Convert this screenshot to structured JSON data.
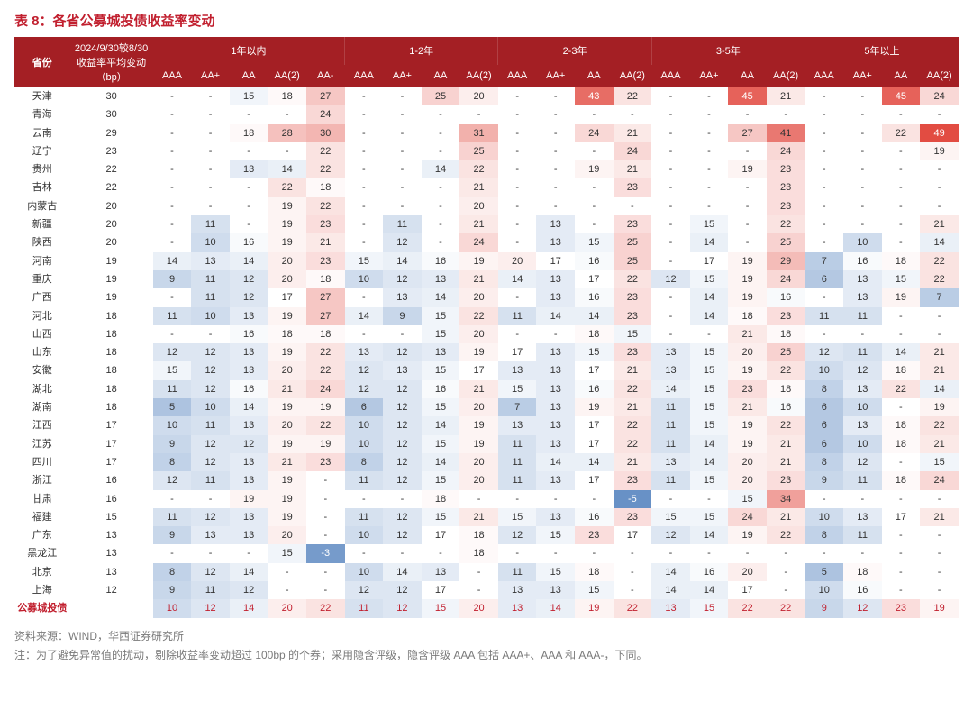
{
  "title": "表 8：各省公募城投债收益率变动",
  "header": {
    "province": "省份",
    "bp_line1": "2024/9/30较8/30",
    "bp_line2": "收益率平均变动",
    "bp_line3": "（bp）",
    "groups": [
      "1年以内",
      "1-2年",
      "2-3年",
      "3-5年",
      "5年以上"
    ],
    "sub": [
      "AAA",
      "AA+",
      "AA",
      "AA(2)",
      "AA-",
      "AAA",
      "AA+",
      "AA",
      "AA(2)",
      "AAA",
      "AA+",
      "AA",
      "AA(2)",
      "AAA",
      "AA+",
      "AA",
      "AA(2)",
      "AAA",
      "AA+",
      "AA",
      "AA(2)"
    ]
  },
  "colors": {
    "header_bg": "#a41f24",
    "title_red": "#c11f2e",
    "footnote_gray": "#7a7a7a"
  },
  "scale": {
    "min_blue": -10,
    "mid": 17,
    "max_red": 50,
    "blue_rgb": [
      70,
      120,
      185
    ],
    "red_rgb": [
      225,
      70,
      60
    ],
    "white_rgb": [
      255,
      255,
      255
    ]
  },
  "rows": [
    {
      "prov": "天津",
      "bp": 30,
      "v": [
        null,
        null,
        15,
        18,
        27,
        null,
        null,
        25,
        20,
        null,
        null,
        43,
        22,
        null,
        null,
        45,
        21,
        null,
        null,
        45,
        24
      ]
    },
    {
      "prov": "青海",
      "bp": 30,
      "v": [
        null,
        null,
        null,
        null,
        24,
        null,
        null,
        null,
        null,
        null,
        null,
        null,
        null,
        null,
        null,
        null,
        null,
        null,
        null,
        null,
        null
      ]
    },
    {
      "prov": "云南",
      "bp": 29,
      "v": [
        null,
        null,
        18,
        28,
        30,
        null,
        null,
        null,
        31,
        null,
        null,
        24,
        21,
        null,
        null,
        27,
        41,
        null,
        null,
        22,
        49
      ]
    },
    {
      "prov": "辽宁",
      "bp": 23,
      "v": [
        null,
        null,
        null,
        null,
        22,
        null,
        null,
        null,
        25,
        null,
        null,
        null,
        24,
        null,
        null,
        null,
        24,
        null,
        null,
        null,
        19
      ]
    },
    {
      "prov": "贵州",
      "bp": 22,
      "v": [
        null,
        null,
        13,
        14,
        22,
        null,
        null,
        14,
        22,
        null,
        null,
        19,
        21,
        null,
        null,
        19,
        23,
        null,
        null,
        null,
        null
      ]
    },
    {
      "prov": "吉林",
      "bp": 22,
      "v": [
        null,
        null,
        null,
        22,
        18,
        null,
        null,
        null,
        21,
        null,
        null,
        null,
        23,
        null,
        null,
        null,
        23,
        null,
        null,
        null,
        null
      ]
    },
    {
      "prov": "内蒙古",
      "bp": 20,
      "v": [
        null,
        null,
        null,
        19,
        22,
        null,
        null,
        null,
        20,
        null,
        null,
        null,
        null,
        null,
        null,
        null,
        23,
        null,
        null,
        null,
        null
      ]
    },
    {
      "prov": "新疆",
      "bp": 20,
      "v": [
        null,
        11,
        null,
        19,
        23,
        null,
        11,
        null,
        21,
        null,
        13,
        null,
        23,
        null,
        15,
        null,
        22,
        null,
        null,
        null,
        21
      ]
    },
    {
      "prov": "陕西",
      "bp": 20,
      "v": [
        null,
        10,
        16,
        19,
        21,
        null,
        12,
        null,
        24,
        null,
        13,
        15,
        25,
        null,
        14,
        null,
        25,
        null,
        10,
        null,
        14
      ]
    },
    {
      "prov": "河南",
      "bp": 19,
      "v": [
        14,
        13,
        14,
        20,
        23,
        15,
        14,
        16,
        19,
        20,
        17,
        16,
        25,
        null,
        17,
        19,
        29,
        7,
        16,
        18,
        22
      ]
    },
    {
      "prov": "重庆",
      "bp": 19,
      "v": [
        9,
        11,
        12,
        20,
        18,
        10,
        12,
        13,
        21,
        14,
        13,
        17,
        22,
        12,
        15,
        19,
        24,
        6,
        13,
        15,
        22
      ]
    },
    {
      "prov": "广西",
      "bp": 19,
      "v": [
        null,
        11,
        12,
        17,
        27,
        null,
        13,
        14,
        20,
        null,
        13,
        16,
        23,
        null,
        14,
        19,
        16,
        null,
        13,
        19,
        7
      ]
    },
    {
      "prov": "河北",
      "bp": 18,
      "v": [
        11,
        10,
        13,
        19,
        27,
        14,
        9,
        15,
        22,
        11,
        14,
        14,
        23,
        null,
        14,
        18,
        23,
        11,
        11,
        null,
        null
      ]
    },
    {
      "prov": "山西",
      "bp": 18,
      "v": [
        null,
        null,
        16,
        18,
        18,
        null,
        null,
        15,
        20,
        null,
        null,
        18,
        15,
        null,
        null,
        21,
        18,
        null,
        null,
        null,
        null
      ]
    },
    {
      "prov": "山东",
      "bp": 18,
      "v": [
        12,
        12,
        13,
        19,
        22,
        13,
        12,
        13,
        19,
        17,
        13,
        15,
        23,
        13,
        15,
        20,
        25,
        12,
        11,
        14,
        21
      ]
    },
    {
      "prov": "安徽",
      "bp": 18,
      "v": [
        15,
        12,
        13,
        20,
        22,
        12,
        13,
        15,
        17,
        13,
        13,
        17,
        21,
        13,
        15,
        19,
        22,
        10,
        12,
        18,
        21
      ]
    },
    {
      "prov": "湖北",
      "bp": 18,
      "v": [
        11,
        12,
        16,
        21,
        24,
        12,
        12,
        16,
        21,
        15,
        13,
        16,
        22,
        14,
        15,
        23,
        18,
        8,
        13,
        22,
        14
      ]
    },
    {
      "prov": "湖南",
      "bp": 18,
      "v": [
        5,
        10,
        14,
        19,
        19,
        6,
        12,
        15,
        20,
        7,
        13,
        19,
        21,
        11,
        15,
        21,
        16,
        6,
        10,
        null,
        19
      ]
    },
    {
      "prov": "江西",
      "bp": 17,
      "v": [
        10,
        11,
        13,
        20,
        22,
        10,
        12,
        14,
        19,
        13,
        13,
        17,
        22,
        11,
        15,
        19,
        22,
        6,
        13,
        18,
        22
      ]
    },
    {
      "prov": "江苏",
      "bp": 17,
      "v": [
        9,
        12,
        12,
        19,
        19,
        10,
        12,
        15,
        19,
        11,
        13,
        17,
        22,
        11,
        14,
        19,
        21,
        6,
        10,
        18,
        21
      ]
    },
    {
      "prov": "四川",
      "bp": 17,
      "v": [
        8,
        12,
        13,
        21,
        23,
        8,
        12,
        14,
        20,
        11,
        14,
        14,
        21,
        13,
        14,
        20,
        21,
        8,
        12,
        null,
        15
      ]
    },
    {
      "prov": "浙江",
      "bp": 16,
      "v": [
        12,
        11,
        13,
        19,
        null,
        11,
        12,
        15,
        20,
        11,
        13,
        17,
        23,
        11,
        15,
        20,
        23,
        9,
        11,
        18,
        24
      ]
    },
    {
      "prov": "甘肃",
      "bp": 16,
      "v": [
        null,
        null,
        19,
        19,
        null,
        null,
        null,
        18,
        null,
        null,
        null,
        null,
        -5,
        null,
        null,
        15,
        34,
        null,
        null,
        null,
        null
      ]
    },
    {
      "prov": "福建",
      "bp": 15,
      "v": [
        11,
        12,
        13,
        19,
        null,
        11,
        12,
        15,
        21,
        15,
        13,
        16,
        23,
        15,
        15,
        24,
        21,
        10,
        13,
        17,
        21
      ]
    },
    {
      "prov": "广东",
      "bp": 13,
      "v": [
        9,
        13,
        13,
        20,
        null,
        10,
        12,
        17,
        18,
        12,
        15,
        23,
        17,
        12,
        14,
        19,
        22,
        8,
        11,
        null,
        null
      ]
    },
    {
      "prov": "黑龙江",
      "bp": 13,
      "v": [
        null,
        null,
        null,
        15,
        -3,
        null,
        null,
        null,
        18,
        null,
        null,
        null,
        null,
        null,
        null,
        null,
        null,
        null,
        null,
        null,
        null
      ]
    },
    {
      "prov": "北京",
      "bp": 13,
      "v": [
        8,
        12,
        14,
        null,
        null,
        10,
        14,
        13,
        null,
        11,
        15,
        18,
        null,
        14,
        16,
        20,
        null,
        5,
        18,
        null,
        null
      ]
    },
    {
      "prov": "上海",
      "bp": 12,
      "v": [
        9,
        11,
        12,
        null,
        null,
        12,
        12,
        17,
        null,
        13,
        13,
        15,
        null,
        14,
        14,
        17,
        null,
        10,
        16,
        null,
        null
      ]
    },
    {
      "prov": "公募城投债",
      "bp": null,
      "red": true,
      "v": [
        10,
        12,
        14,
        20,
        22,
        11,
        12,
        15,
        20,
        13,
        14,
        19,
        22,
        13,
        15,
        22,
        22,
        9,
        12,
        23,
        19
      ]
    }
  ],
  "footnote_source": "资料来源：WIND，华西证券研究所",
  "footnote_note": "注：为了避免异常值的扰动，剔除收益率变动超过 100bp 的个券；采用隐含评级，隐含评级 AAA 包括 AAA+、AAA 和 AAA-，下同。"
}
